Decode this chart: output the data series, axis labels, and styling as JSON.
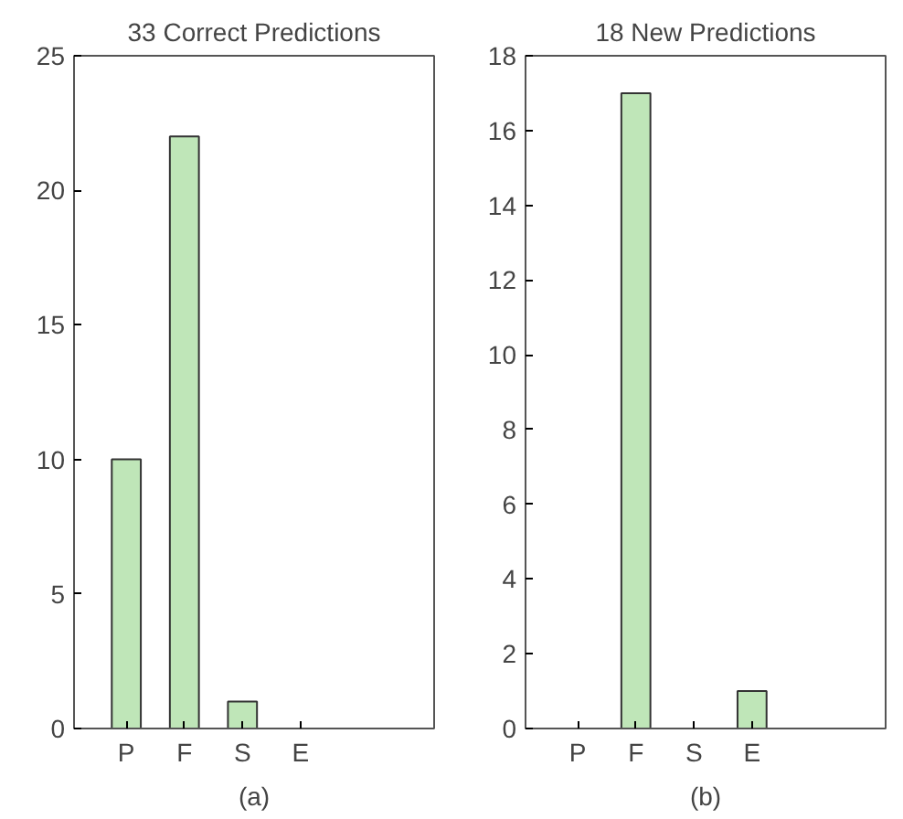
{
  "chart_data": [
    {
      "type": "bar",
      "title": "33 Correct Predictions",
      "xlabel": "(a)",
      "categories": [
        "P",
        "F",
        "S",
        "E"
      ],
      "values": [
        10,
        22,
        1,
        0
      ],
      "color": "#bfe6b8",
      "ylim": [
        0,
        25
      ],
      "yticks": [
        0,
        5,
        10,
        15,
        20,
        25
      ],
      "grid": false
    },
    {
      "type": "bar",
      "title": "18 New Predictions",
      "xlabel": "(b)",
      "categories": [
        "P",
        "F",
        "S",
        "E"
      ],
      "values": [
        0,
        17,
        0,
        1
      ],
      "color": "#bfe6b8",
      "ylim": [
        0,
        18
      ],
      "yticks": [
        0,
        2,
        4,
        6,
        8,
        10,
        12,
        14,
        16,
        18
      ],
      "grid": false
    }
  ]
}
